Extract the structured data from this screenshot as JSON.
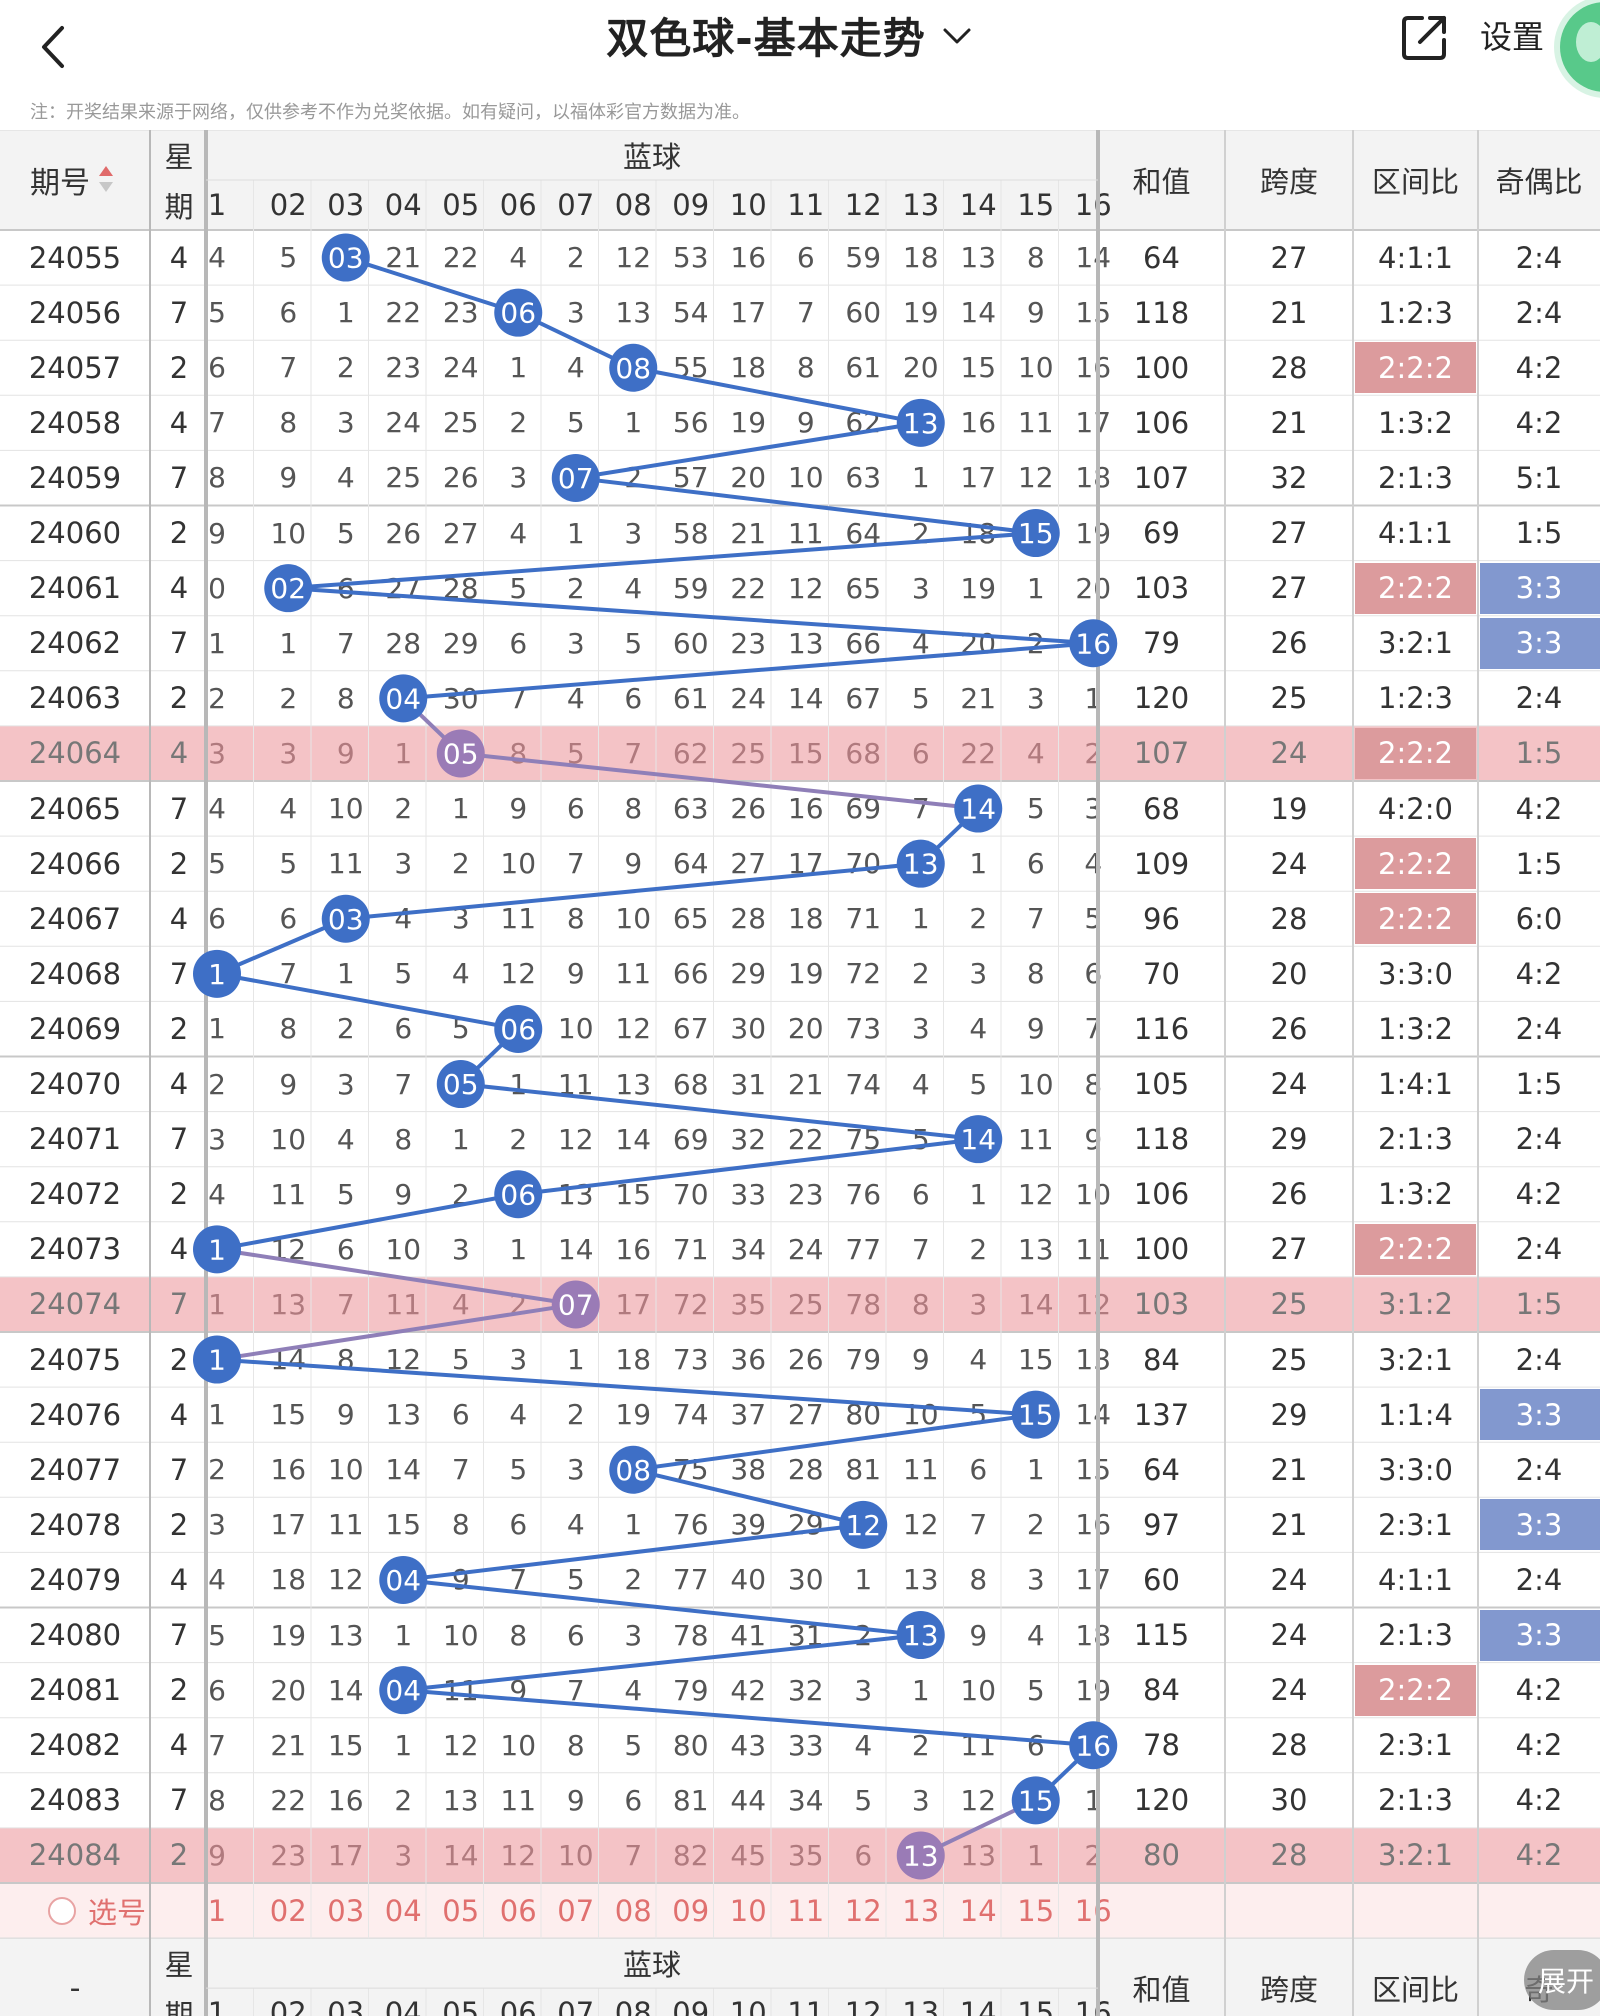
{
  "nav": {
    "title": "双色球-基本走势",
    "settings_label": "设置",
    "icons": [
      "back-arrow-icon",
      "chevron-down-icon",
      "share-icon"
    ]
  },
  "disclaimer": "注：开奖结果来源于网络，仅供参考不作为兑奖依据。如有疑问，以福体彩官方数据为准。",
  "header": {
    "issue": "期号",
    "week_top": "星",
    "week_bottom": "期",
    "blue_group": "蓝球",
    "numbers": [
      "1",
      "02",
      "03",
      "04",
      "05",
      "06",
      "07",
      "08",
      "09",
      "10",
      "11",
      "12",
      "13",
      "14",
      "15",
      "16"
    ],
    "sum": "和值",
    "span": "跨度",
    "zone_ratio": "区间比",
    "odd_even": "奇偶比"
  },
  "footer_header": {
    "issue": "-",
    "week_top": "星",
    "week_bottom": "期",
    "blue_group": "蓝球",
    "sum": "和值",
    "span": "跨度",
    "zone_ratio": "区间比",
    "odd_even": "奇"
  },
  "select_row": {
    "label": "选号",
    "numbers": [
      "1",
      "02",
      "03",
      "04",
      "05",
      "06",
      "07",
      "08",
      "09",
      "10",
      "11",
      "12",
      "13",
      "14",
      "15",
      "16"
    ]
  },
  "expand_label": "展开",
  "colors": {
    "ball_blue": "#3e6fc6",
    "ball_muted": "#9a7bb6",
    "row_pink": "#f4c3c6",
    "zone_highlight": "#dc9b9d",
    "oddeven_highlight": "#8298cf",
    "select_text": "#e0706f"
  },
  "rows": [
    {
      "issue": "24055",
      "week": "4",
      "cells": [
        "4",
        "5",
        "03",
        "21",
        "22",
        "4",
        "2",
        "12",
        "53",
        "16",
        "6",
        "59",
        "18",
        "13",
        "8",
        "14"
      ],
      "ball": "03",
      "sum": "64",
      "span": "27",
      "zone": "4:1:1",
      "oddeven": "2:4",
      "row_hl": false,
      "zone_hl": false,
      "oe_hl": false
    },
    {
      "issue": "24056",
      "week": "7",
      "cells": [
        "5",
        "6",
        "1",
        "22",
        "23",
        "06",
        "3",
        "13",
        "54",
        "17",
        "7",
        "60",
        "19",
        "14",
        "9",
        "15"
      ],
      "ball": "06",
      "sum": "118",
      "span": "21",
      "zone": "1:2:3",
      "oddeven": "2:4",
      "row_hl": false,
      "zone_hl": false,
      "oe_hl": false
    },
    {
      "issue": "24057",
      "week": "2",
      "cells": [
        "6",
        "7",
        "2",
        "23",
        "24",
        "1",
        "4",
        "08",
        "55",
        "18",
        "8",
        "61",
        "20",
        "15",
        "10",
        "16"
      ],
      "ball": "08",
      "sum": "100",
      "span": "28",
      "zone": "2:2:2",
      "oddeven": "4:2",
      "row_hl": false,
      "zone_hl": true,
      "oe_hl": false
    },
    {
      "issue": "24058",
      "week": "4",
      "cells": [
        "7",
        "8",
        "3",
        "24",
        "25",
        "2",
        "5",
        "1",
        "56",
        "19",
        "9",
        "62",
        "13",
        "16",
        "11",
        "17"
      ],
      "ball": "13",
      "sum": "106",
      "span": "21",
      "zone": "1:3:2",
      "oddeven": "4:2",
      "row_hl": false,
      "zone_hl": false,
      "oe_hl": false
    },
    {
      "issue": "24059",
      "week": "7",
      "cells": [
        "8",
        "9",
        "4",
        "25",
        "26",
        "3",
        "07",
        "2",
        "57",
        "20",
        "10",
        "63",
        "1",
        "17",
        "12",
        "18"
      ],
      "ball": "07",
      "sum": "107",
      "span": "32",
      "zone": "2:1:3",
      "oddeven": "5:1",
      "row_hl": false,
      "zone_hl": false,
      "oe_hl": false
    },
    {
      "issue": "24060",
      "week": "2",
      "cells": [
        "9",
        "10",
        "5",
        "26",
        "27",
        "4",
        "1",
        "3",
        "58",
        "21",
        "11",
        "64",
        "2",
        "18",
        "15",
        "19"
      ],
      "ball": "15",
      "sum": "69",
      "span": "27",
      "zone": "4:1:1",
      "oddeven": "1:5",
      "row_hl": false,
      "zone_hl": false,
      "oe_hl": false
    },
    {
      "issue": "24061",
      "week": "4",
      "cells": [
        "0",
        "02",
        "6",
        "27",
        "28",
        "5",
        "2",
        "4",
        "59",
        "22",
        "12",
        "65",
        "3",
        "19",
        "1",
        "20"
      ],
      "ball": "02",
      "sum": "103",
      "span": "27",
      "zone": "2:2:2",
      "oddeven": "3:3",
      "row_hl": false,
      "zone_hl": true,
      "oe_hl": true
    },
    {
      "issue": "24062",
      "week": "7",
      "cells": [
        "1",
        "1",
        "7",
        "28",
        "29",
        "6",
        "3",
        "5",
        "60",
        "23",
        "13",
        "66",
        "4",
        "20",
        "2",
        "16"
      ],
      "ball": "16",
      "sum": "79",
      "span": "26",
      "zone": "3:2:1",
      "oddeven": "3:3",
      "row_hl": false,
      "zone_hl": false,
      "oe_hl": true
    },
    {
      "issue": "24063",
      "week": "2",
      "cells": [
        "2",
        "2",
        "8",
        "04",
        "30",
        "7",
        "4",
        "6",
        "61",
        "24",
        "14",
        "67",
        "5",
        "21",
        "3",
        "1"
      ],
      "ball": "04",
      "sum": "120",
      "span": "25",
      "zone": "1:2:3",
      "oddeven": "2:4",
      "row_hl": false,
      "zone_hl": false,
      "oe_hl": false
    },
    {
      "issue": "24064",
      "week": "4",
      "cells": [
        "3",
        "3",
        "9",
        "1",
        "05",
        "8",
        "5",
        "7",
        "62",
        "25",
        "15",
        "68",
        "6",
        "22",
        "4",
        "2"
      ],
      "ball": "05",
      "sum": "107",
      "span": "24",
      "zone": "2:2:2",
      "oddeven": "1:5",
      "row_hl": true,
      "zone_hl": true,
      "oe_hl": false
    },
    {
      "issue": "24065",
      "week": "7",
      "cells": [
        "4",
        "4",
        "10",
        "2",
        "1",
        "9",
        "6",
        "8",
        "63",
        "26",
        "16",
        "69",
        "7",
        "14",
        "5",
        "3"
      ],
      "ball": "14",
      "sum": "68",
      "span": "19",
      "zone": "4:2:0",
      "oddeven": "4:2",
      "row_hl": false,
      "zone_hl": false,
      "oe_hl": false
    },
    {
      "issue": "24066",
      "week": "2",
      "cells": [
        "5",
        "5",
        "11",
        "3",
        "2",
        "10",
        "7",
        "9",
        "64",
        "27",
        "17",
        "70",
        "13",
        "1",
        "6",
        "4"
      ],
      "ball": "13",
      "sum": "109",
      "span": "24",
      "zone": "2:2:2",
      "oddeven": "1:5",
      "row_hl": false,
      "zone_hl": true,
      "oe_hl": false
    },
    {
      "issue": "24067",
      "week": "4",
      "cells": [
        "6",
        "6",
        "03",
        "4",
        "3",
        "11",
        "8",
        "10",
        "65",
        "28",
        "18",
        "71",
        "1",
        "2",
        "7",
        "5"
      ],
      "ball": "03",
      "sum": "96",
      "span": "28",
      "zone": "2:2:2",
      "oddeven": "6:0",
      "row_hl": false,
      "zone_hl": true,
      "oe_hl": false
    },
    {
      "issue": "24068",
      "week": "7",
      "cells": [
        "1",
        "7",
        "1",
        "5",
        "4",
        "12",
        "9",
        "11",
        "66",
        "29",
        "19",
        "72",
        "2",
        "3",
        "8",
        "6"
      ],
      "ball": "1",
      "sum": "70",
      "span": "20",
      "zone": "3:3:0",
      "oddeven": "4:2",
      "row_hl": false,
      "zone_hl": false,
      "oe_hl": false
    },
    {
      "issue": "24069",
      "week": "2",
      "cells": [
        "1",
        "8",
        "2",
        "6",
        "5",
        "06",
        "10",
        "12",
        "67",
        "30",
        "20",
        "73",
        "3",
        "4",
        "9",
        "7"
      ],
      "ball": "06",
      "sum": "116",
      "span": "26",
      "zone": "1:3:2",
      "oddeven": "2:4",
      "row_hl": false,
      "zone_hl": false,
      "oe_hl": false
    },
    {
      "issue": "24070",
      "week": "4",
      "cells": [
        "2",
        "9",
        "3",
        "7",
        "05",
        "1",
        "11",
        "13",
        "68",
        "31",
        "21",
        "74",
        "4",
        "5",
        "10",
        "8"
      ],
      "ball": "05",
      "sum": "105",
      "span": "24",
      "zone": "1:4:1",
      "oddeven": "1:5",
      "row_hl": false,
      "zone_hl": false,
      "oe_hl": false
    },
    {
      "issue": "24071",
      "week": "7",
      "cells": [
        "3",
        "10",
        "4",
        "8",
        "1",
        "2",
        "12",
        "14",
        "69",
        "32",
        "22",
        "75",
        "5",
        "14",
        "11",
        "9"
      ],
      "ball": "14",
      "sum": "118",
      "span": "29",
      "zone": "2:1:3",
      "oddeven": "2:4",
      "row_hl": false,
      "zone_hl": false,
      "oe_hl": false
    },
    {
      "issue": "24072",
      "week": "2",
      "cells": [
        "4",
        "11",
        "5",
        "9",
        "2",
        "06",
        "13",
        "15",
        "70",
        "33",
        "23",
        "76",
        "6",
        "1",
        "12",
        "10"
      ],
      "ball": "06",
      "sum": "106",
      "span": "26",
      "zone": "1:3:2",
      "oddeven": "4:2",
      "row_hl": false,
      "zone_hl": false,
      "oe_hl": false
    },
    {
      "issue": "24073",
      "week": "4",
      "cells": [
        "1",
        "12",
        "6",
        "10",
        "3",
        "1",
        "14",
        "16",
        "71",
        "34",
        "24",
        "77",
        "7",
        "2",
        "13",
        "11"
      ],
      "ball": "1",
      "sum": "100",
      "span": "27",
      "zone": "2:2:2",
      "oddeven": "2:4",
      "row_hl": false,
      "zone_hl": true,
      "oe_hl": false
    },
    {
      "issue": "24074",
      "week": "7",
      "cells": [
        "1",
        "13",
        "7",
        "11",
        "4",
        "2",
        "07",
        "17",
        "72",
        "35",
        "25",
        "78",
        "8",
        "3",
        "14",
        "12"
      ],
      "ball": "07",
      "sum": "103",
      "span": "25",
      "zone": "3:1:2",
      "oddeven": "1:5",
      "row_hl": true,
      "zone_hl": false,
      "oe_hl": false
    },
    {
      "issue": "24075",
      "week": "2",
      "cells": [
        "1",
        "14",
        "8",
        "12",
        "5",
        "3",
        "1",
        "18",
        "73",
        "36",
        "26",
        "79",
        "9",
        "4",
        "15",
        "13"
      ],
      "ball": "1",
      "sum": "84",
      "span": "25",
      "zone": "3:2:1",
      "oddeven": "2:4",
      "row_hl": false,
      "zone_hl": false,
      "oe_hl": false
    },
    {
      "issue": "24076",
      "week": "4",
      "cells": [
        "1",
        "15",
        "9",
        "13",
        "6",
        "4",
        "2",
        "19",
        "74",
        "37",
        "27",
        "80",
        "10",
        "5",
        "15",
        "14"
      ],
      "ball": "15",
      "sum": "137",
      "span": "29",
      "zone": "1:1:4",
      "oddeven": "3:3",
      "row_hl": false,
      "zone_hl": false,
      "oe_hl": true
    },
    {
      "issue": "24077",
      "week": "7",
      "cells": [
        "2",
        "16",
        "10",
        "14",
        "7",
        "5",
        "3",
        "08",
        "75",
        "38",
        "28",
        "81",
        "11",
        "6",
        "1",
        "15"
      ],
      "ball": "08",
      "sum": "64",
      "span": "21",
      "zone": "3:3:0",
      "oddeven": "2:4",
      "row_hl": false,
      "zone_hl": false,
      "oe_hl": false
    },
    {
      "issue": "24078",
      "week": "2",
      "cells": [
        "3",
        "17",
        "11",
        "15",
        "8",
        "6",
        "4",
        "1",
        "76",
        "39",
        "29",
        "12",
        "12",
        "7",
        "2",
        "16"
      ],
      "ball": "12",
      "sum": "97",
      "span": "21",
      "zone": "2:3:1",
      "oddeven": "3:3",
      "row_hl": false,
      "zone_hl": false,
      "oe_hl": true
    },
    {
      "issue": "24079",
      "week": "4",
      "cells": [
        "4",
        "18",
        "12",
        "04",
        "9",
        "7",
        "5",
        "2",
        "77",
        "40",
        "30",
        "1",
        "13",
        "8",
        "3",
        "17"
      ],
      "ball": "04",
      "sum": "60",
      "span": "24",
      "zone": "4:1:1",
      "oddeven": "2:4",
      "row_hl": false,
      "zone_hl": false,
      "oe_hl": false
    },
    {
      "issue": "24080",
      "week": "7",
      "cells": [
        "5",
        "19",
        "13",
        "1",
        "10",
        "8",
        "6",
        "3",
        "78",
        "41",
        "31",
        "2",
        "13",
        "9",
        "4",
        "18"
      ],
      "ball": "13",
      "sum": "115",
      "span": "24",
      "zone": "2:1:3",
      "oddeven": "3:3",
      "row_hl": false,
      "zone_hl": false,
      "oe_hl": true
    },
    {
      "issue": "24081",
      "week": "2",
      "cells": [
        "6",
        "20",
        "14",
        "04",
        "11",
        "9",
        "7",
        "4",
        "79",
        "42",
        "32",
        "3",
        "1",
        "10",
        "5",
        "19"
      ],
      "ball": "04",
      "sum": "84",
      "span": "24",
      "zone": "2:2:2",
      "oddeven": "4:2",
      "row_hl": false,
      "zone_hl": true,
      "oe_hl": false
    },
    {
      "issue": "24082",
      "week": "4",
      "cells": [
        "7",
        "21",
        "15",
        "1",
        "12",
        "10",
        "8",
        "5",
        "80",
        "43",
        "33",
        "4",
        "2",
        "11",
        "6",
        "16"
      ],
      "ball": "16",
      "sum": "78",
      "span": "28",
      "zone": "2:3:1",
      "oddeven": "4:2",
      "row_hl": false,
      "zone_hl": false,
      "oe_hl": false
    },
    {
      "issue": "24083",
      "week": "7",
      "cells": [
        "8",
        "22",
        "16",
        "2",
        "13",
        "11",
        "9",
        "6",
        "81",
        "44",
        "34",
        "5",
        "3",
        "12",
        "15",
        "1"
      ],
      "ball": "15",
      "sum": "120",
      "span": "30",
      "zone": "2:1:3",
      "oddeven": "4:2",
      "row_hl": false,
      "zone_hl": false,
      "oe_hl": false
    },
    {
      "issue": "24084",
      "week": "2",
      "cells": [
        "9",
        "23",
        "17",
        "3",
        "14",
        "12",
        "10",
        "7",
        "82",
        "45",
        "35",
        "6",
        "13",
        "13",
        "1",
        "2"
      ],
      "ball": "13",
      "sum": "80",
      "span": "28",
      "zone": "3:2:1",
      "oddeven": "4:2",
      "row_hl": true,
      "zone_hl": false,
      "oe_hl": false
    }
  ]
}
